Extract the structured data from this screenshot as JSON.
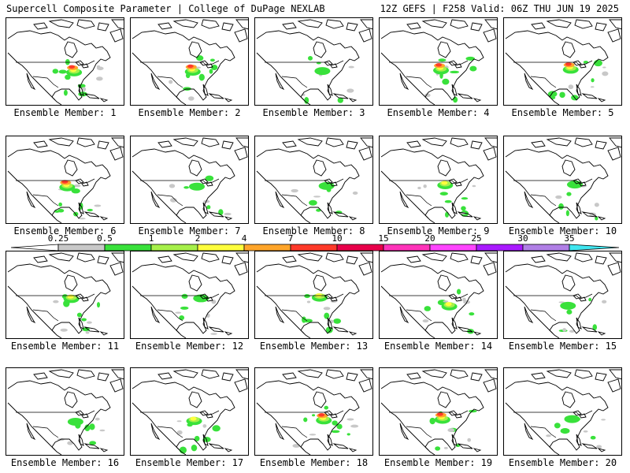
{
  "header": {
    "title_left": "Supercell Composite Parameter | College of DuPage NEXLAB",
    "title_right": "12Z GEFS | F258 Valid: 06Z THU JUN 19 2025"
  },
  "members": [
    {
      "label": "Ensemble Member: 1",
      "intensity": "high"
    },
    {
      "label": "Ensemble Member: 2",
      "intensity": "high"
    },
    {
      "label": "Ensemble Member: 3",
      "intensity": "low"
    },
    {
      "label": "Ensemble Member: 4",
      "intensity": "high"
    },
    {
      "label": "Ensemble Member: 5",
      "intensity": "high"
    },
    {
      "label": "Ensemble Member: 6",
      "intensity": "high"
    },
    {
      "label": "Ensemble Member: 7",
      "intensity": "low"
    },
    {
      "label": "Ensemble Member: 8",
      "intensity": "low"
    },
    {
      "label": "Ensemble Member: 9",
      "intensity": "medium"
    },
    {
      "label": "Ensemble Member: 10",
      "intensity": "low"
    },
    {
      "label": "Ensemble Member: 11",
      "intensity": "medium"
    },
    {
      "label": "Ensemble Member: 12",
      "intensity": "low"
    },
    {
      "label": "Ensemble Member: 13",
      "intensity": "medium"
    },
    {
      "label": "Ensemble Member: 14",
      "intensity": "medium"
    },
    {
      "label": "Ensemble Member: 15",
      "intensity": "low"
    },
    {
      "label": "Ensemble Member: 16",
      "intensity": "low"
    },
    {
      "label": "Ensemble Member: 17",
      "intensity": "medium"
    },
    {
      "label": "Ensemble Member: 18",
      "intensity": "high"
    },
    {
      "label": "Ensemble Member: 19",
      "intensity": "high"
    },
    {
      "label": "Ensemble Member: 20",
      "intensity": "low"
    }
  ],
  "colorbar": {
    "ticks": [
      "0.25",
      "0.5",
      "1",
      "2",
      "4",
      "7",
      "10",
      "15",
      "20",
      "25",
      "30",
      "35"
    ],
    "colors": [
      "#c8c8c8",
      "#39e13b",
      "#a6f04a",
      "#ffff3d",
      "#ffa52a",
      "#ff3a2a",
      "#e8004a",
      "#ff33b9",
      "#ff45ff",
      "#a91aff",
      "#b07fe6",
      "#3fe6f0"
    ]
  }
}
